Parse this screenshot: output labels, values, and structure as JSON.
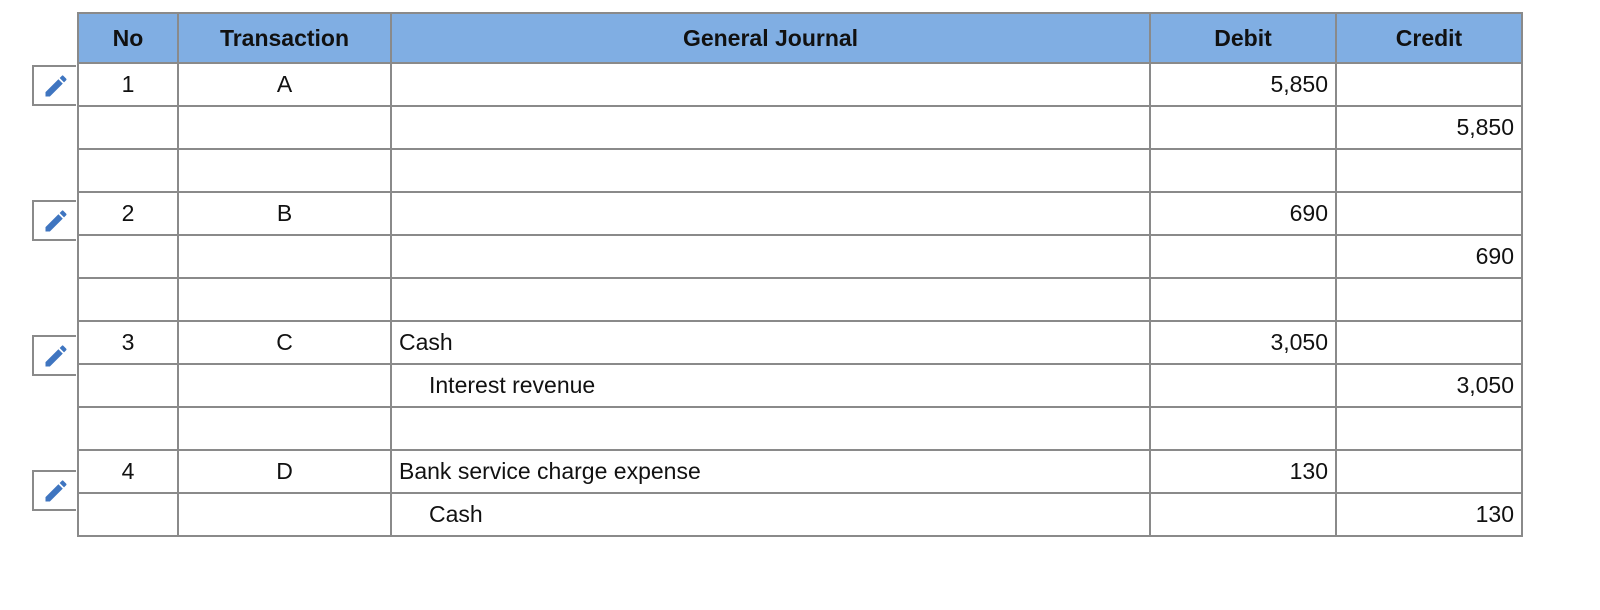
{
  "table": {
    "header": [
      "No",
      "Transaction",
      "General Journal",
      "Debit",
      "Credit"
    ],
    "rows": [
      [
        "1",
        "A",
        null,
        "5,850",
        null
      ],
      [
        null,
        null,
        null,
        null,
        "5,850"
      ],
      [
        null,
        null,
        null,
        null,
        null
      ],
      [
        "2",
        "B",
        null,
        "690",
        null
      ],
      [
        null,
        null,
        null,
        null,
        "690"
      ],
      [
        null,
        null,
        null,
        null,
        null
      ],
      [
        "3",
        "C",
        "Cash",
        "3,050",
        null
      ],
      [
        null,
        null,
        "Interest revenue",
        null,
        "3,050"
      ],
      [
        null,
        null,
        null,
        null,
        null
      ],
      [
        "4",
        "D",
        "Bank service charge expense",
        "130",
        null
      ],
      [
        null,
        null,
        "Cash",
        null,
        "130"
      ]
    ]
  }
}
